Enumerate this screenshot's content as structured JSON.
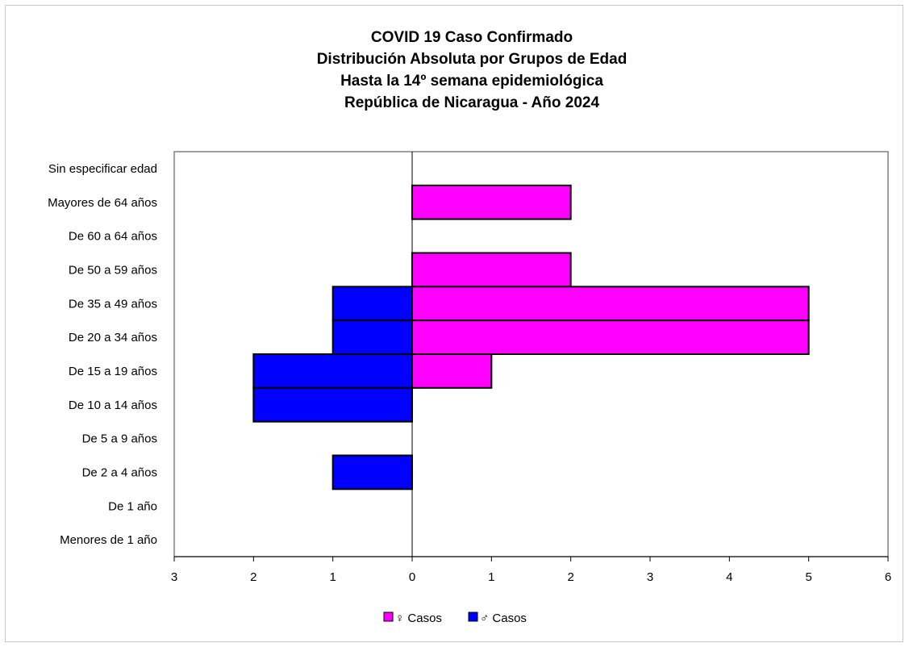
{
  "chart_data": {
    "type": "bar",
    "orientation": "horizontal",
    "stacking": "population-pyramid",
    "title_lines": [
      "COVID 19 Caso Confirmado",
      "Distribución Absoluta por Grupos de Edad",
      "Hasta la 14º semana epidemiológica",
      "República de Nicaragua - Año 2024"
    ],
    "categories": [
      "Sin especificar edad",
      "Mayores de 64 años",
      "De 60 a 64 años",
      "De 50 a 59 años",
      "De 35 a 49 años",
      "De 20 a 34 años",
      "De 15 a 19 años",
      "De 10 a 14 años",
      "De 5 a 9 años",
      "De 2 a 4 años",
      "De 1 año",
      "Menores de 1 año"
    ],
    "series": [
      {
        "name": "♀ Casos",
        "color": "#ff00ff",
        "side": "right",
        "values": [
          0,
          2,
          0,
          2,
          5,
          5,
          1,
          0,
          0,
          0,
          0,
          0
        ]
      },
      {
        "name": "♂ Casos",
        "color": "#0000ff",
        "side": "left",
        "values": [
          0,
          0,
          0,
          0,
          1,
          1,
          2,
          2,
          0,
          1,
          0,
          0
        ]
      }
    ],
    "x_ticks": [
      "3",
      "2",
      "1",
      "0",
      "1",
      "2",
      "3",
      "4",
      "5",
      "6"
    ],
    "xlim": [
      -3,
      6
    ],
    "legend_position": "bottom",
    "grid": false,
    "plot_border_color": "#808080"
  }
}
